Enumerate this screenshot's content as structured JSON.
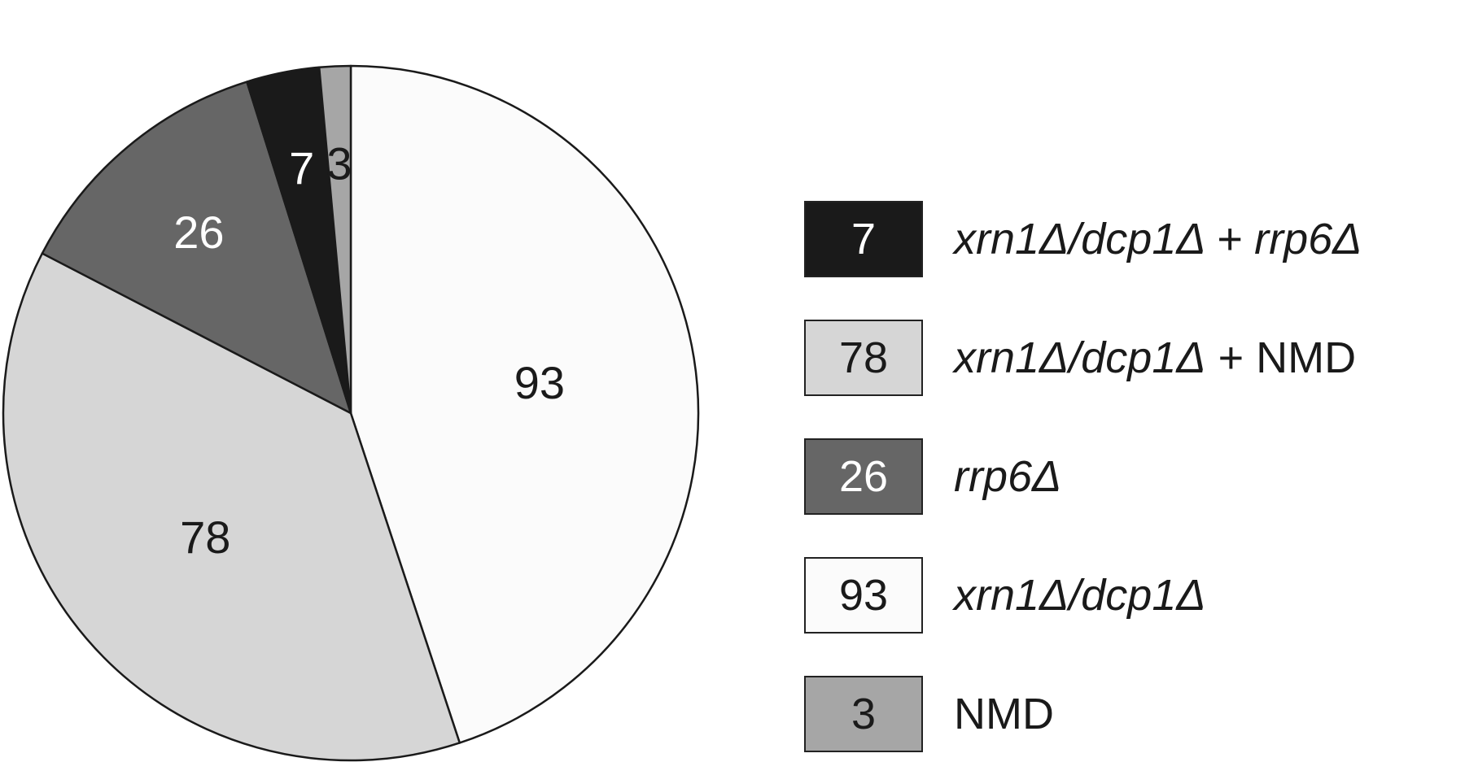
{
  "chart_data": {
    "type": "pie",
    "slices": [
      {
        "value": 93,
        "label": "93",
        "color": "#fbfbfb",
        "text_color": "#1a1a1a"
      },
      {
        "value": 78,
        "label": "78",
        "color": "#d6d6d6",
        "text_color": "#1a1a1a"
      },
      {
        "value": 26,
        "label": "26",
        "color": "#666666",
        "text_color": "#ffffff"
      },
      {
        "value": 7,
        "label": "7",
        "color": "#1a1a1a",
        "text_color": "#ffffff"
      },
      {
        "value": 3,
        "label": "3",
        "color": "#a6a6a6",
        "text_color": "#1a1a1a"
      }
    ],
    "legend": [
      {
        "value": "7",
        "color": "#1a1a1a",
        "text_color": "#ffffff",
        "parts": [
          {
            "text": "xrn1Δ/dcp1Δ + rrp6Δ",
            "italic": true
          }
        ]
      },
      {
        "value": "78",
        "color": "#d6d6d6",
        "text_color": "#1a1a1a",
        "parts": [
          {
            "text": "xrn1Δ/dcp1Δ",
            "italic": true
          },
          {
            "text": " + NMD",
            "italic": false
          }
        ]
      },
      {
        "value": "26",
        "color": "#666666",
        "text_color": "#ffffff",
        "parts": [
          {
            "text": "rrp6Δ",
            "italic": true
          }
        ]
      },
      {
        "value": "93",
        "color": "#fbfbfb",
        "text_color": "#1a1a1a",
        "parts": [
          {
            "text": "xrn1Δ/dcp1Δ",
            "italic": true
          }
        ]
      },
      {
        "value": "3",
        "color": "#a6a6a6",
        "text_color": "#1a1a1a",
        "parts": [
          {
            "text": "NMD",
            "italic": false
          }
        ]
      }
    ],
    "legend_position": "right"
  }
}
